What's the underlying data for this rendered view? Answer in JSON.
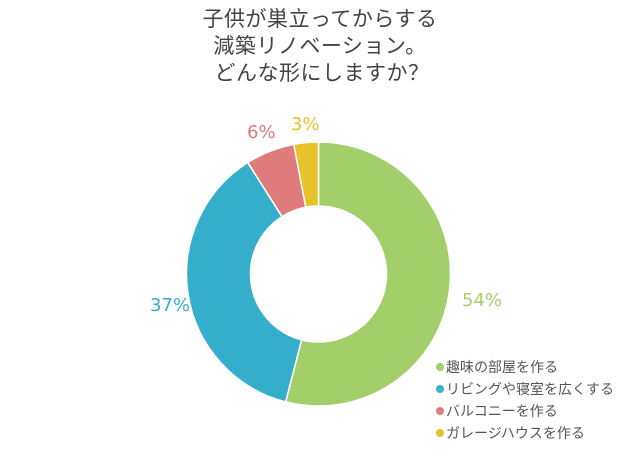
{
  "title": {
    "line1": "子供が巣立ってからする",
    "line2": "減築リノベーション。",
    "line3": "どんな形にしますか？"
  },
  "legend": {
    "items": [
      {
        "label": "趣味の部屋を作る",
        "color": "#a3cf6a"
      },
      {
        "label": "リビングや寝室を広くする",
        "color": "#35aecb"
      },
      {
        "label": "バルコニーを作る",
        "color": "#e07b7b"
      },
      {
        "label": "ガレージハウスを作る",
        "color": "#e8c22a"
      }
    ]
  },
  "labels": {
    "hobby": "54%",
    "living": "37%",
    "balcony": "6%",
    "garage": "3%"
  },
  "chart_data": {
    "type": "pie",
    "subtype": "donut",
    "title": "子供が巣立ってからする減築リノベーション。どんな形にしますか？",
    "categories": [
      "趣味の部屋を作る",
      "リビングや寝室を広くする",
      "バルコニーを作る",
      "ガレージハウスを作る"
    ],
    "values": [
      54,
      37,
      6,
      3
    ],
    "unit": "%",
    "colors": [
      "#a3cf6a",
      "#35aecb",
      "#e07b7b",
      "#e8c22a"
    ],
    "start_angle": "12 o'clock",
    "direction": "clockwise",
    "legend_position": "bottom-right",
    "data_labels": [
      "54%",
      "37%",
      "6%",
      "3%"
    ]
  }
}
